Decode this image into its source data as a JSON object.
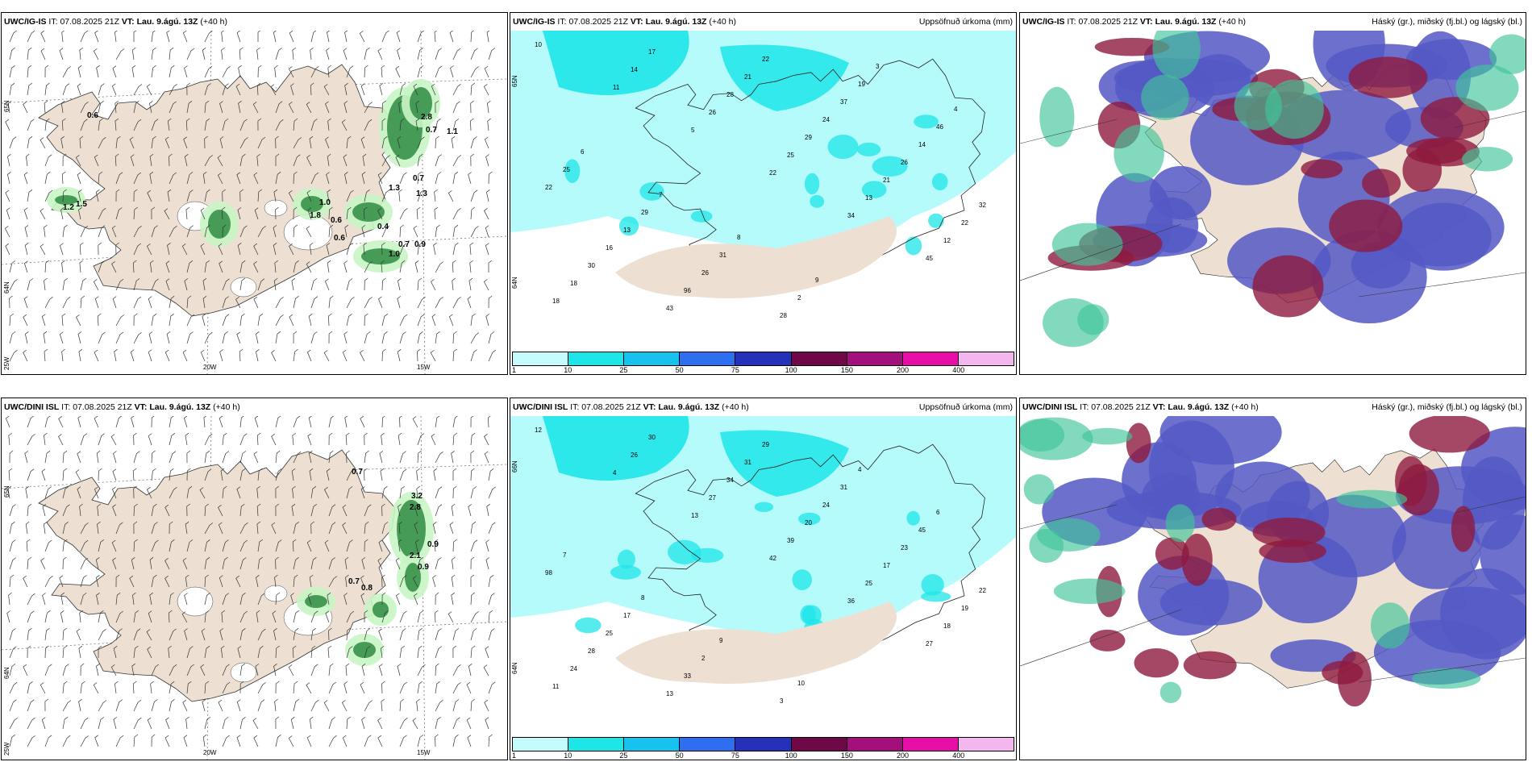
{
  "rows": [
    {
      "model": "UWC/IG-IS",
      "it_label": "IT:",
      "it_value": "07.08.2025 21Z",
      "vt_label": "VT:",
      "vt_value": "Lau. 9.ágú. 13Z",
      "lead": "(+40 h)",
      "panels": {
        "wind": {
          "axis_labels": [
            "65N",
            "64N",
            "25W",
            "20W",
            "15W"
          ],
          "values": [
            "0.6",
            "1.2",
            "1.5",
            "1.0",
            "1.8",
            "0.6",
            "0.6",
            "2.8",
            "0.7",
            "1.1",
            "1.3",
            "0.7",
            "1.3",
            "0.4",
            "0.7",
            "0.9",
            "1.0"
          ]
        },
        "precip": {
          "title": "Uppsöfnuð úrkoma (mm)",
          "axis_labels": [
            "65N",
            "64N"
          ],
          "values": [
            "10",
            "11",
            "5",
            "22",
            "34",
            "45",
            "18",
            "14",
            "26",
            "25",
            "13",
            "12",
            "18",
            "17",
            "28",
            "29",
            "21",
            "22",
            "30",
            "43",
            "21",
            "24",
            "26",
            "32",
            "16",
            "96",
            "22",
            "37",
            "14",
            "22",
            "13",
            "26",
            "28",
            "19",
            "46",
            "25",
            "29",
            "31",
            "2",
            "3",
            "4",
            "6",
            "7",
            "8",
            "9"
          ]
        },
        "cloud": {
          "title": "Háský (gr.), miðský (fj.bl.) og lágský (bl.)"
        }
      }
    },
    {
      "model": "UWC/DINI ISL",
      "it_label": "IT:",
      "it_value": "07.08.2025 21Z",
      "vt_label": "VT:",
      "vt_value": "Lau. 9.ágú. 13Z",
      "lead": "(+40 h)",
      "panels": {
        "wind": {
          "axis_labels": [
            "65N",
            "64N",
            "25W",
            "20W",
            "15W"
          ],
          "values": [
            "0.7",
            "3.2",
            "2.8",
            "0.9",
            "2.1",
            "0.9",
            "0.7",
            "0.8"
          ]
        },
        "precip": {
          "title": "Uppsöfnuð úrkoma (mm)",
          "axis_labels": [
            "66N",
            "64N"
          ],
          "values": [
            "12",
            "4",
            "13",
            "42",
            "36",
            "27",
            "11",
            "26",
            "27",
            "39",
            "25",
            "18",
            "24",
            "30",
            "34",
            "20",
            "17",
            "19",
            "28",
            "13",
            "31",
            "24",
            "23",
            "22",
            "25",
            "33",
            "29",
            "31",
            "45",
            "98",
            "17",
            "2",
            "3",
            "4",
            "6",
            "7",
            "8",
            "9",
            "10"
          ]
        },
        "cloud": {
          "title": "Háský (gr.), miðský (fj.bl.) og lágský (bl.)"
        }
      }
    }
  ],
  "colorbar": {
    "ticks": [
      "1",
      "10",
      "25",
      "50",
      "75",
      "100",
      "150",
      "200",
      "400"
    ],
    "colors": [
      "#c4fbfb",
      "#1de5e8",
      "#17c2ef",
      "#2d6ff0",
      "#2431b8",
      "#6e0847",
      "#a30f7b",
      "#e60ea6",
      "#f4b6ef"
    ]
  },
  "colors": {
    "land": "#ede0d2",
    "sea": "#ffffff",
    "precip_light": "#b6fbfb",
    "precip_cyan": "#1de5e8",
    "cloud_high": "#40c59a",
    "cloud_mid": "#5458c4",
    "cloud_low": "#8e1a3e"
  }
}
